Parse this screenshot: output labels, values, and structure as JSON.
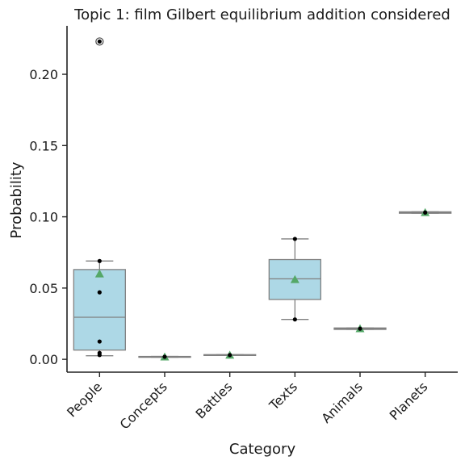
{
  "chart_data": {
    "type": "box",
    "title": "Topic 1: film Gilbert equilibrium addition considered",
    "xlabel": "Category",
    "ylabel": "Probability",
    "ylim": [
      -0.009,
      0.234
    ],
    "yticks": [
      0.0,
      0.05,
      0.1,
      0.15,
      0.2
    ],
    "ytick_labels": [
      "0.00",
      "0.05",
      "0.10",
      "0.15",
      "0.20"
    ],
    "categories": [
      "People",
      "Concepts",
      "Battles",
      "Texts",
      "Animals",
      "Planets"
    ],
    "boxes": [
      {
        "category": "People",
        "q1": 0.0065,
        "median": 0.0295,
        "q3": 0.063,
        "whisker_low": 0.0025,
        "whisker_high": 0.069,
        "mean": 0.06,
        "outliers": [
          0.223
        ],
        "points": [
          0.069,
          0.047,
          0.0125,
          0.0045,
          0.003,
          0.223
        ]
      },
      {
        "category": "Concepts",
        "q1": 0.0015,
        "median": 0.0018,
        "q3": 0.002,
        "whisker_low": 0.0015,
        "whisker_high": 0.002,
        "mean": 0.0017,
        "outliers": [],
        "points": [
          0.0018
        ]
      },
      {
        "category": "Battles",
        "q1": 0.0027,
        "median": 0.003,
        "q3": 0.0033,
        "whisker_low": 0.0027,
        "whisker_high": 0.0033,
        "mean": 0.003,
        "outliers": [],
        "points": [
          0.003
        ]
      },
      {
        "category": "Texts",
        "q1": 0.042,
        "median": 0.0565,
        "q3": 0.07,
        "whisker_low": 0.028,
        "whisker_high": 0.0845,
        "mean": 0.056,
        "outliers": [],
        "points": [
          0.0845,
          0.028
        ]
      },
      {
        "category": "Animals",
        "q1": 0.021,
        "median": 0.0215,
        "q3": 0.022,
        "whisker_low": 0.021,
        "whisker_high": 0.022,
        "mean": 0.0215,
        "outliers": [],
        "points": [
          0.0215
        ]
      },
      {
        "category": "Planets",
        "q1": 0.1025,
        "median": 0.103,
        "q3": 0.1035,
        "whisker_low": 0.1025,
        "whisker_high": 0.1035,
        "mean": 0.103,
        "outliers": [],
        "points": [
          0.103
        ]
      }
    ],
    "colors": {
      "box_fill": "#add8e6",
      "box_edge": "#808080",
      "mean_marker": "#55a868",
      "point": "#000000",
      "axis": "#222222"
    },
    "grid": false
  }
}
